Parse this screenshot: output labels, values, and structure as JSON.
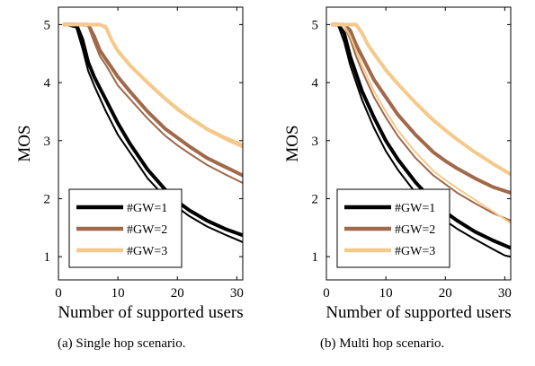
{
  "chart_data": [
    {
      "type": "line",
      "caption": "(a) Single hop scenario.",
      "xlabel": "Number of supported users",
      "ylabel": "MOS",
      "xlim": [
        0,
        31
      ],
      "ylim": [
        0.6,
        5.3
      ],
      "xticks": [
        0,
        10,
        20,
        30
      ],
      "yticks": [
        1,
        2,
        3,
        4,
        5
      ],
      "grid": false,
      "legend_position": "lower-left",
      "legend": [
        "#GW=1",
        "#GW=2",
        "#GW=3"
      ],
      "series": [
        {
          "color": "#000000",
          "width": "thick",
          "x": [
            1,
            3,
            4,
            5,
            6,
            8,
            10,
            12,
            15,
            18,
            20,
            22,
            25,
            28,
            31
          ],
          "y": [
            5.0,
            5.0,
            4.75,
            4.35,
            4.1,
            3.7,
            3.3,
            2.95,
            2.5,
            2.15,
            1.95,
            1.8,
            1.62,
            1.48,
            1.37
          ]
        },
        {
          "color": "#000000",
          "width": "thin",
          "x": [
            1,
            3,
            4,
            5,
            6,
            8,
            10,
            12,
            15,
            18,
            20,
            22,
            25,
            28,
            31
          ],
          "y": [
            5.0,
            4.95,
            4.6,
            4.2,
            3.95,
            3.5,
            3.1,
            2.8,
            2.35,
            2.02,
            1.85,
            1.7,
            1.52,
            1.38,
            1.25
          ]
        },
        {
          "color": "#a0694a",
          "width": "thick",
          "x": [
            1,
            5,
            6,
            7,
            8,
            10,
            12,
            15,
            18,
            20,
            22,
            25,
            28,
            31
          ],
          "y": [
            5.0,
            5.0,
            4.8,
            4.55,
            4.4,
            4.1,
            3.85,
            3.5,
            3.2,
            3.05,
            2.9,
            2.7,
            2.55,
            2.4
          ]
        },
        {
          "color": "#a0694a",
          "width": "thin",
          "x": [
            1,
            5,
            6,
            7,
            8,
            10,
            12,
            15,
            18,
            20,
            22,
            25,
            28,
            31
          ],
          "y": [
            5.0,
            4.98,
            4.7,
            4.45,
            4.3,
            3.95,
            3.72,
            3.38,
            3.08,
            2.92,
            2.78,
            2.58,
            2.42,
            2.27
          ]
        },
        {
          "color": "#f5c98a",
          "width": "thick",
          "x": [
            1,
            7,
            8,
            9,
            10,
            12,
            15,
            18,
            20,
            22,
            25,
            28,
            31
          ],
          "y": [
            5.0,
            5.0,
            4.95,
            4.72,
            4.55,
            4.3,
            4.0,
            3.72,
            3.55,
            3.4,
            3.2,
            3.05,
            2.92
          ]
        },
        {
          "color": "#f5c98a",
          "width": "thin",
          "x": [
            1,
            8,
            9,
            10,
            12,
            15,
            18,
            20,
            22,
            25,
            28,
            31
          ],
          "y": [
            5.0,
            4.98,
            4.7,
            4.52,
            4.28,
            3.98,
            3.7,
            3.52,
            3.38,
            3.18,
            3.02,
            2.88
          ]
        }
      ]
    },
    {
      "type": "line",
      "caption": "(b) Multi hop scenario.",
      "xlabel": "Number of supported users",
      "ylabel": "MOS",
      "xlim": [
        0,
        31
      ],
      "ylim": [
        0.6,
        5.3
      ],
      "xticks": [
        0,
        10,
        20,
        30
      ],
      "yticks": [
        1,
        2,
        3,
        4,
        5
      ],
      "grid": false,
      "legend_position": "lower-left",
      "legend": [
        "#GW=1",
        "#GW=2",
        "#GW=3"
      ],
      "series": [
        {
          "color": "#000000",
          "width": "thick",
          "x": [
            1,
            2,
            3,
            4,
            6,
            8,
            10,
            12,
            15,
            18,
            20,
            22,
            25,
            28,
            31
          ],
          "y": [
            5.0,
            5.0,
            4.85,
            4.45,
            3.85,
            3.4,
            3.0,
            2.68,
            2.28,
            1.95,
            1.77,
            1.62,
            1.43,
            1.28,
            1.15
          ]
        },
        {
          "color": "#000000",
          "width": "thin",
          "x": [
            1,
            2,
            3,
            4,
            6,
            8,
            10,
            12,
            15,
            18,
            20,
            22,
            25,
            28,
            30,
            31
          ],
          "y": [
            5.0,
            4.98,
            4.7,
            4.3,
            3.7,
            3.22,
            2.82,
            2.5,
            2.1,
            1.8,
            1.62,
            1.48,
            1.3,
            1.13,
            1.02,
            1.0
          ]
        },
        {
          "color": "#a0694a",
          "width": "thick",
          "x": [
            1,
            3,
            4,
            5,
            6,
            8,
            10,
            12,
            15,
            18,
            20,
            22,
            25,
            28,
            31
          ],
          "y": [
            5.0,
            5.0,
            4.9,
            4.65,
            4.45,
            4.05,
            3.75,
            3.45,
            3.1,
            2.8,
            2.65,
            2.52,
            2.35,
            2.2,
            2.1
          ]
        },
        {
          "color": "#a0694a",
          "width": "thin",
          "x": [
            1,
            3,
            4,
            5,
            6,
            8,
            10,
            12,
            15,
            18,
            20,
            22,
            25,
            28,
            31
          ],
          "y": [
            5.0,
            4.98,
            4.75,
            4.45,
            4.2,
            3.75,
            3.4,
            3.08,
            2.7,
            2.4,
            2.25,
            2.1,
            1.92,
            1.75,
            1.62
          ]
        },
        {
          "color": "#f5c98a",
          "width": "thick",
          "x": [
            1,
            5,
            6,
            7,
            8,
            10,
            12,
            15,
            18,
            20,
            22,
            25,
            28,
            31
          ],
          "y": [
            5.0,
            5.0,
            4.85,
            4.65,
            4.5,
            4.22,
            3.98,
            3.65,
            3.35,
            3.18,
            3.02,
            2.8,
            2.6,
            2.42
          ]
        },
        {
          "color": "#f5c98a",
          "width": "thin",
          "x": [
            1,
            3,
            4,
            5,
            6,
            8,
            10,
            12,
            15,
            18,
            20,
            22,
            25,
            28,
            31
          ],
          "y": [
            5.0,
            4.98,
            4.8,
            4.55,
            4.3,
            3.85,
            3.5,
            3.18,
            2.8,
            2.48,
            2.32,
            2.18,
            1.98,
            1.78,
            1.58
          ]
        }
      ]
    }
  ]
}
